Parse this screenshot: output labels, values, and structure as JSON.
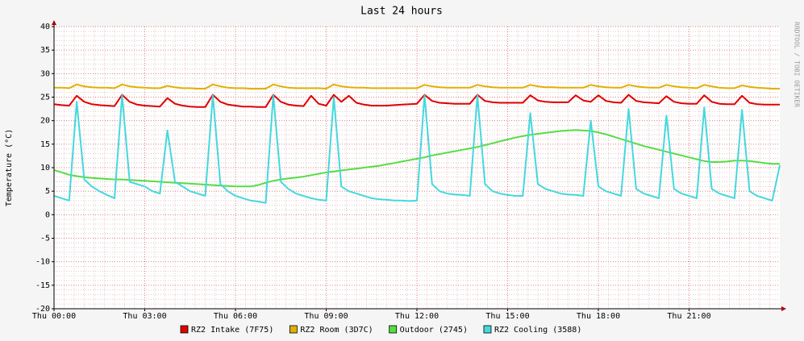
{
  "chart_data": {
    "type": "line",
    "title": "Last 24 hours",
    "y_label": "Temperature (°C)",
    "watermark": "RRDTOOL / TOBI OETIKER",
    "x": [
      0,
      0.25,
      0.5,
      0.75,
      1,
      1.25,
      1.5,
      1.75,
      2,
      2.25,
      2.5,
      2.75,
      3,
      3.25,
      3.5,
      3.75,
      4,
      4.25,
      4.5,
      4.75,
      5,
      5.25,
      5.5,
      5.75,
      6,
      6.25,
      6.5,
      6.75,
      7,
      7.25,
      7.5,
      7.75,
      8,
      8.25,
      8.5,
      8.75,
      9,
      9.25,
      9.5,
      9.75,
      10,
      10.25,
      10.5,
      10.75,
      11,
      11.25,
      11.5,
      11.75,
      12,
      12.25,
      12.5,
      12.75,
      13,
      13.25,
      13.5,
      13.75,
      14,
      14.25,
      14.5,
      14.75,
      15,
      15.25,
      15.5,
      15.75,
      16,
      16.25,
      16.5,
      16.75,
      17,
      17.25,
      17.5,
      17.75,
      18,
      18.25,
      18.5,
      18.75,
      19,
      19.25,
      19.5,
      19.75,
      20,
      20.25,
      20.5,
      20.75,
      21,
      21.25,
      21.5,
      21.75,
      22,
      22.25,
      22.5,
      22.75,
      23,
      23.25,
      23.5,
      23.75,
      24
    ],
    "xlim": [
      0,
      24
    ],
    "xticks": [
      {
        "value": 0,
        "label": "Thu 00:00"
      },
      {
        "value": 3,
        "label": "Thu 03:00"
      },
      {
        "value": 6,
        "label": "Thu 06:00"
      },
      {
        "value": 9,
        "label": "Thu 09:00"
      },
      {
        "value": 12,
        "label": "Thu 12:00"
      },
      {
        "value": 15,
        "label": "Thu 15:00"
      },
      {
        "value": 18,
        "label": "Thu 18:00"
      },
      {
        "value": 21,
        "label": "Thu 21:00"
      }
    ],
    "ylim": [
      -20,
      40
    ],
    "yticks": [
      -20,
      -15,
      -10,
      -5,
      0,
      5,
      10,
      15,
      20,
      25,
      30,
      35,
      40
    ],
    "grid": true,
    "series": [
      {
        "name": "RZ2 Intake (7F75)",
        "color": "#e00000",
        "values": [
          23.5,
          23.3,
          23.2,
          25.3,
          24.0,
          23.5,
          23.3,
          23.2,
          23.1,
          25.5,
          24.0,
          23.4,
          23.2,
          23.1,
          23.0,
          24.8,
          23.6,
          23.2,
          23.0,
          22.9,
          22.9,
          25.5,
          24.0,
          23.4,
          23.2,
          23.0,
          23.0,
          22.9,
          22.9,
          25.5,
          24.0,
          23.4,
          23.2,
          23.1,
          25.3,
          23.6,
          23.2,
          25.5,
          24.0,
          25.3,
          23.8,
          23.4,
          23.2,
          23.2,
          23.2,
          23.3,
          23.4,
          23.5,
          23.6,
          25.5,
          24.2,
          23.8,
          23.7,
          23.6,
          23.6,
          23.6,
          25.5,
          24.2,
          23.9,
          23.8,
          23.8,
          23.8,
          23.8,
          25.4,
          24.3,
          24.0,
          23.9,
          23.9,
          23.9,
          25.4,
          24.3,
          24.0,
          25.4,
          24.2,
          23.9,
          23.8,
          25.5,
          24.2,
          23.9,
          23.8,
          23.7,
          25.2,
          24.0,
          23.7,
          23.6,
          23.6,
          25.4,
          24.0,
          23.6,
          23.5,
          23.5,
          25.3,
          23.8,
          23.5,
          23.4,
          23.4,
          23.4
        ]
      },
      {
        "name": "RZ2 Room (3D7C)",
        "color": "#e0b000",
        "values": [
          27.0,
          27.0,
          26.9,
          27.7,
          27.3,
          27.1,
          27.0,
          27.0,
          26.9,
          27.7,
          27.3,
          27.1,
          27.0,
          26.9,
          26.9,
          27.4,
          27.1,
          26.9,
          26.9,
          26.8,
          26.8,
          27.7,
          27.3,
          27.0,
          26.9,
          26.9,
          26.8,
          26.8,
          26.8,
          27.7,
          27.3,
          27.0,
          26.9,
          26.9,
          26.9,
          26.9,
          26.8,
          27.7,
          27.3,
          27.1,
          27.0,
          27.0,
          26.9,
          26.9,
          26.9,
          26.9,
          26.9,
          26.9,
          26.9,
          27.6,
          27.3,
          27.1,
          27.0,
          27.0,
          27.0,
          27.0,
          27.6,
          27.3,
          27.1,
          27.0,
          27.0,
          27.0,
          27.0,
          27.6,
          27.3,
          27.1,
          27.1,
          27.0,
          27.0,
          27.0,
          27.0,
          27.6,
          27.3,
          27.1,
          27.0,
          27.0,
          27.6,
          27.3,
          27.1,
          27.0,
          27.0,
          27.6,
          27.3,
          27.1,
          27.0,
          26.9,
          27.6,
          27.3,
          27.0,
          26.9,
          26.9,
          27.5,
          27.2,
          27.0,
          26.9,
          26.8,
          26.8
        ]
      },
      {
        "name": "Outdoor (2745)",
        "color": "#55dd44",
        "values": [
          9.5,
          9.0,
          8.5,
          8.2,
          8.0,
          7.8,
          7.7,
          7.6,
          7.5,
          7.5,
          7.4,
          7.3,
          7.2,
          7.1,
          7.0,
          6.9,
          6.8,
          6.7,
          6.6,
          6.5,
          6.4,
          6.3,
          6.2,
          6.1,
          6.0,
          6.0,
          6.0,
          6.3,
          6.8,
          7.2,
          7.5,
          7.7,
          7.9,
          8.1,
          8.4,
          8.7,
          9.0,
          9.2,
          9.4,
          9.6,
          9.8,
          10.0,
          10.2,
          10.4,
          10.7,
          11.0,
          11.3,
          11.6,
          11.9,
          12.2,
          12.6,
          12.9,
          13.2,
          13.5,
          13.8,
          14.1,
          14.4,
          14.8,
          15.2,
          15.6,
          16.0,
          16.4,
          16.7,
          17.0,
          17.2,
          17.4,
          17.6,
          17.8,
          17.9,
          18.0,
          17.9,
          17.8,
          17.5,
          17.1,
          16.6,
          16.1,
          15.6,
          15.1,
          14.6,
          14.2,
          13.8,
          13.4,
          13.0,
          12.6,
          12.2,
          11.8,
          11.4,
          11.2,
          11.2,
          11.3,
          11.5,
          11.5,
          11.4,
          11.2,
          11.0,
          10.8,
          10.8
        ]
      },
      {
        "name": "RZ2 Cooling (3588)",
        "color": "#44d8dd",
        "values": [
          4.0,
          3.5,
          3.0,
          24.0,
          7.5,
          6.0,
          5.0,
          4.2,
          3.5,
          25.4,
          7.0,
          6.5,
          6.0,
          5.0,
          4.5,
          17.9,
          7.0,
          6.0,
          5.0,
          4.5,
          4.0,
          25.4,
          6.5,
          5.0,
          4.0,
          3.5,
          3.0,
          2.8,
          2.5,
          25.4,
          7.0,
          5.5,
          4.5,
          4.0,
          3.5,
          3.2,
          3.0,
          25.0,
          6.0,
          5.0,
          4.5,
          4.0,
          3.5,
          3.3,
          3.2,
          3.0,
          3.0,
          2.9,
          3.0,
          25.4,
          6.5,
          5.0,
          4.5,
          4.3,
          4.2,
          4.0,
          25.4,
          6.5,
          5.0,
          4.5,
          4.2,
          4.0,
          4.0,
          21.6,
          6.5,
          5.5,
          5.0,
          4.5,
          4.3,
          4.2,
          4.0,
          20.0,
          6.0,
          5.0,
          4.5,
          4.0,
          22.5,
          5.5,
          4.5,
          4.0,
          3.5,
          21.1,
          5.5,
          4.5,
          4.0,
          3.5,
          22.8,
          5.5,
          4.5,
          4.0,
          3.5,
          22.3,
          5.0,
          4.0,
          3.5,
          3.0,
          10.5
        ]
      }
    ]
  }
}
